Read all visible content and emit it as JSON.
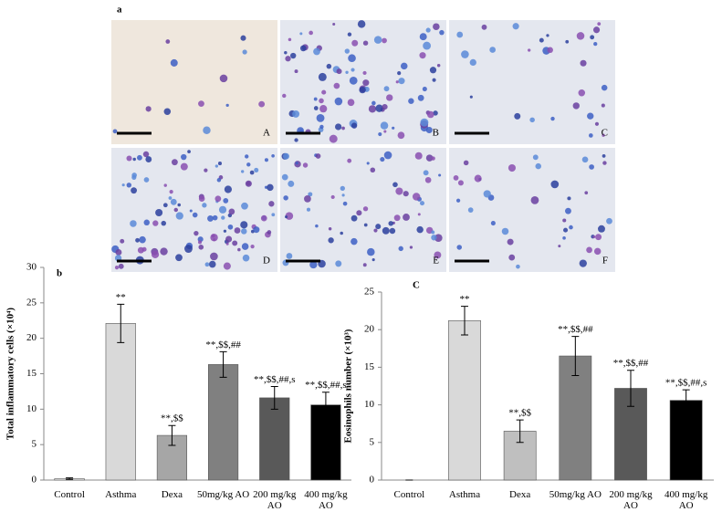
{
  "figure_label": "a",
  "micrographs": [
    "A",
    "B",
    "C",
    "D",
    "E",
    "F"
  ],
  "chart_data": [
    {
      "type": "bar",
      "panel_label": "b",
      "y_label": "Total inflammatory cells (×10⁴)",
      "categories": [
        "Control",
        "Asthma",
        "Dexa",
        "50mg/kg AO",
        "200 mg/kg AO",
        "400 mg/kg AO"
      ],
      "values": [
        0.2,
        22.1,
        6.3,
        16.3,
        11.6,
        10.6
      ],
      "errors": [
        0.1,
        2.7,
        1.4,
        1.8,
        1.6,
        1.8
      ],
      "annotations": [
        null,
        "**",
        "**,$$",
        "**,$$,##",
        "**,$$,##,s",
        "**,$$,##,s"
      ],
      "colors": [
        "#f2f2f2",
        "#d9d9d9",
        "#a6a6a6",
        "#808080",
        "#595959",
        "#000000"
      ],
      "ylim": [
        0,
        30
      ],
      "yticks": [
        0,
        5,
        10,
        15,
        20,
        25,
        30
      ]
    },
    {
      "type": "bar",
      "panel_label": "C",
      "y_label": "Eosinophils number (×10³)",
      "categories": [
        "Control",
        "Asthma",
        "Dexa",
        "50mg/kg AO",
        "200 mg/kg AO",
        "400 mg/kg AO"
      ],
      "values": [
        0,
        21.2,
        6.5,
        16.5,
        12.2,
        10.6
      ],
      "errors": [
        0,
        1.9,
        1.5,
        2.6,
        2.4,
        1.4
      ],
      "annotations": [
        null,
        "**",
        "**,$$",
        "**,$$,##",
        "**,$$,##",
        "**,$$,##,s"
      ],
      "colors": [
        "#f2f2f2",
        "#d9d9d9",
        "#bfbfbf",
        "#808080",
        "#595959",
        "#000000"
      ],
      "ylim": [
        0,
        25
      ],
      "yticks": [
        0,
        5,
        10,
        15,
        20,
        25
      ]
    }
  ]
}
